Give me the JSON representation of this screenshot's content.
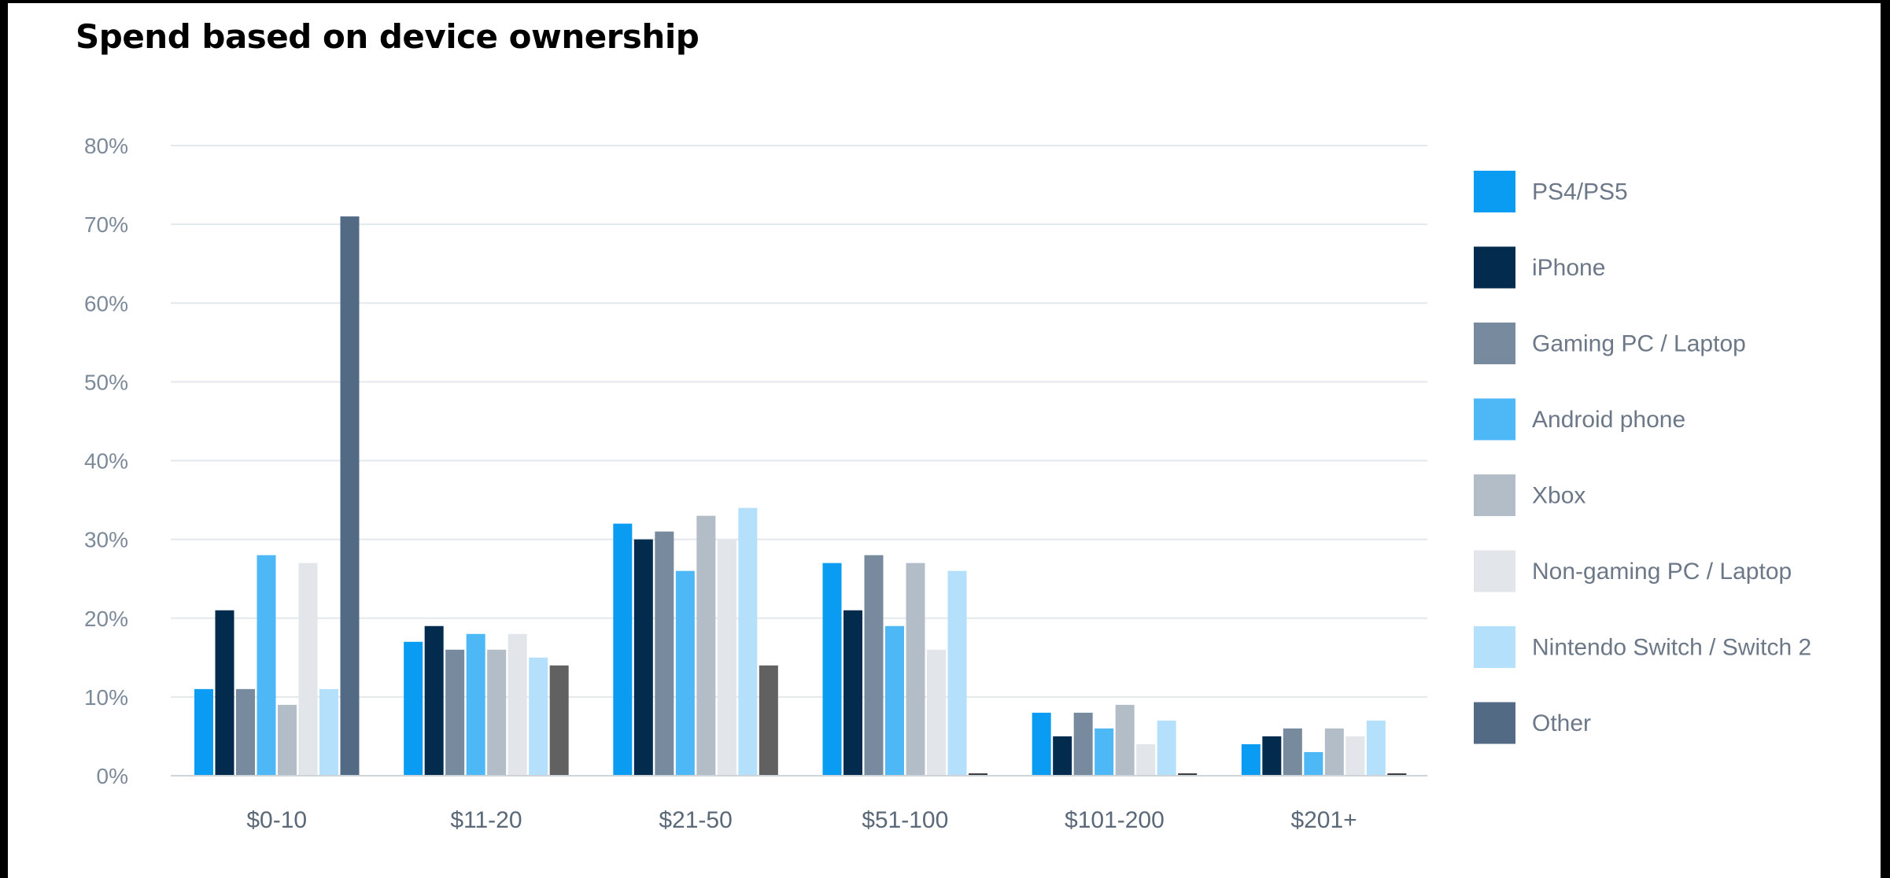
{
  "chart_data": {
    "type": "bar",
    "title": "Spend based on device ownership",
    "xlabel": "",
    "ylabel": "",
    "ylim": [
      0,
      80
    ],
    "y_ticks": [
      "0%",
      "10%",
      "20%",
      "30%",
      "40%",
      "50%",
      "60%",
      "70%",
      "80%"
    ],
    "grid": true,
    "legend_position": "right",
    "categories": [
      "$0-10",
      "$11-20",
      "$21-50",
      "$51-100",
      "$101-200",
      "$201+"
    ],
    "series": [
      {
        "name": "PS4/PS5",
        "color": "#0a9cf2",
        "values": [
          11,
          17,
          32,
          27,
          8,
          4
        ]
      },
      {
        "name": "iPhone",
        "color": "#022b4d",
        "values": [
          21,
          19,
          30,
          21,
          5,
          5
        ]
      },
      {
        "name": "Gaming PC / Laptop",
        "color": "#778a9e",
        "values": [
          11,
          16,
          31,
          28,
          8,
          6
        ]
      },
      {
        "name": "Android phone",
        "color": "#4db8f5",
        "values": [
          28,
          18,
          26,
          19,
          6,
          3
        ]
      },
      {
        "name": "Xbox",
        "color": "#b3bdc7",
        "values": [
          9,
          16,
          33,
          27,
          9,
          6
        ]
      },
      {
        "name": "Non-gaming PC / Laptop",
        "color": "#e2e6ea",
        "values": [
          27,
          18,
          30,
          16,
          4,
          5
        ]
      },
      {
        "name": "Nintendo Switch / Switch 2",
        "color": "#b5e0fb",
        "values": [
          11,
          15,
          34,
          26,
          7,
          7
        ]
      },
      {
        "name": "Other",
        "color": "#526a83",
        "values": [
          71,
          14,
          14,
          0,
          0,
          0
        ]
      }
    ],
    "other_bar_colors": [
      "#526a83",
      "#616161",
      "#616161",
      "#3c3c3c",
      "#3c3c3c",
      "#3c3c3c"
    ]
  }
}
